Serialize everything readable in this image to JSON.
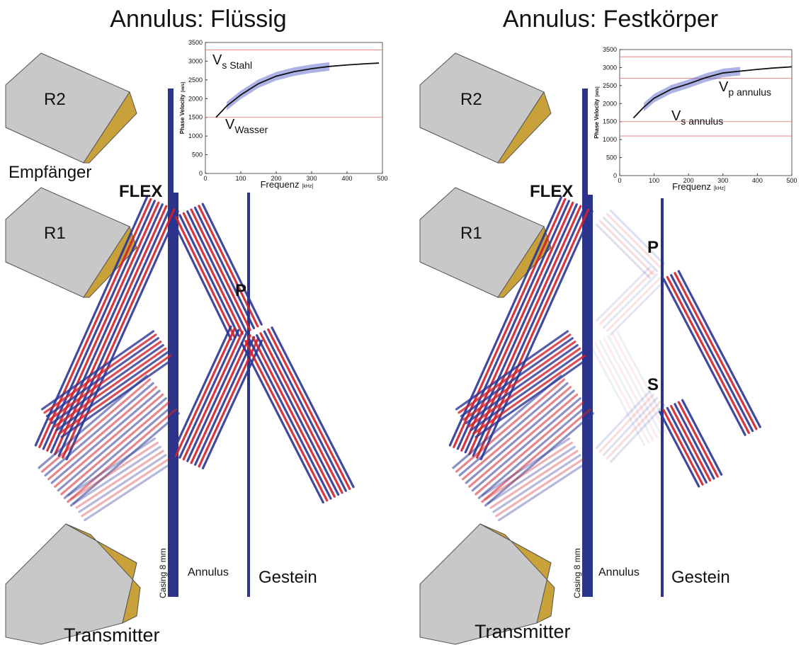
{
  "panels": [
    {
      "title": "Annulus: Flüssig",
      "labels": {
        "r2": "R2",
        "receiver": "Empfänger",
        "r1": "R1",
        "flex": "FLEX",
        "p": "P",
        "casing": "Casing 8 mm",
        "annulus": "Annulus",
        "rock": "Gestein",
        "transmitter": "Transmitter"
      },
      "inset": {
        "xlabel": "Frequenz",
        "xunit": "[kHz]",
        "ylabel": "Phase Velocity",
        "yunit": "[m/s]",
        "xlim": [
          0,
          500
        ],
        "ylim": [
          0,
          3500
        ],
        "xticks": [
          0,
          100,
          200,
          300,
          400,
          500
        ],
        "yticks": [
          0,
          500,
          1000,
          1500,
          2000,
          2500,
          3000,
          3500
        ],
        "reference_lines": [
          3300,
          1500
        ],
        "annotations": [
          {
            "main": "V",
            "sub": "s Stahl"
          },
          {
            "main": "V",
            "sub": "Wasser"
          }
        ],
        "curve": {
          "x": [
            30,
            60,
            100,
            150,
            200,
            250,
            300,
            350,
            400,
            450,
            490
          ],
          "y": [
            1500,
            1800,
            2100,
            2400,
            2600,
            2720,
            2800,
            2860,
            2900,
            2930,
            2950
          ]
        }
      }
    },
    {
      "title": "Annulus: Festkörper",
      "labels": {
        "r2": "R2",
        "r1": "R1",
        "flex": "FLEX",
        "p": "P",
        "s": "S",
        "casing": "Casing 8 mm",
        "annulus": "Annulus",
        "rock": "Gestein",
        "transmitter": "Transmitter"
      },
      "inset": {
        "xlabel": "Frequenz",
        "xunit": "[kHz]",
        "ylabel": "Phase Velocity",
        "yunit": "[m/s]",
        "xlim": [
          0,
          500
        ],
        "ylim": [
          0,
          3500
        ],
        "xticks": [
          0,
          100,
          200,
          300,
          400,
          500
        ],
        "yticks": [
          0,
          500,
          1000,
          1500,
          2000,
          2500,
          3000,
          3500
        ],
        "reference_lines": [
          3300,
          2700,
          1500,
          1100
        ],
        "annotations": [
          {
            "main": "V",
            "sub": "p  annulus"
          },
          {
            "main": "V",
            "sub": "s  annulus"
          }
        ],
        "curve": {
          "x": [
            40,
            70,
            100,
            150,
            200,
            250,
            300,
            350,
            400,
            450,
            500
          ],
          "y": [
            1600,
            1900,
            2150,
            2400,
            2550,
            2720,
            2850,
            2900,
            2950,
            2990,
            3020
          ]
        }
      }
    }
  ]
}
